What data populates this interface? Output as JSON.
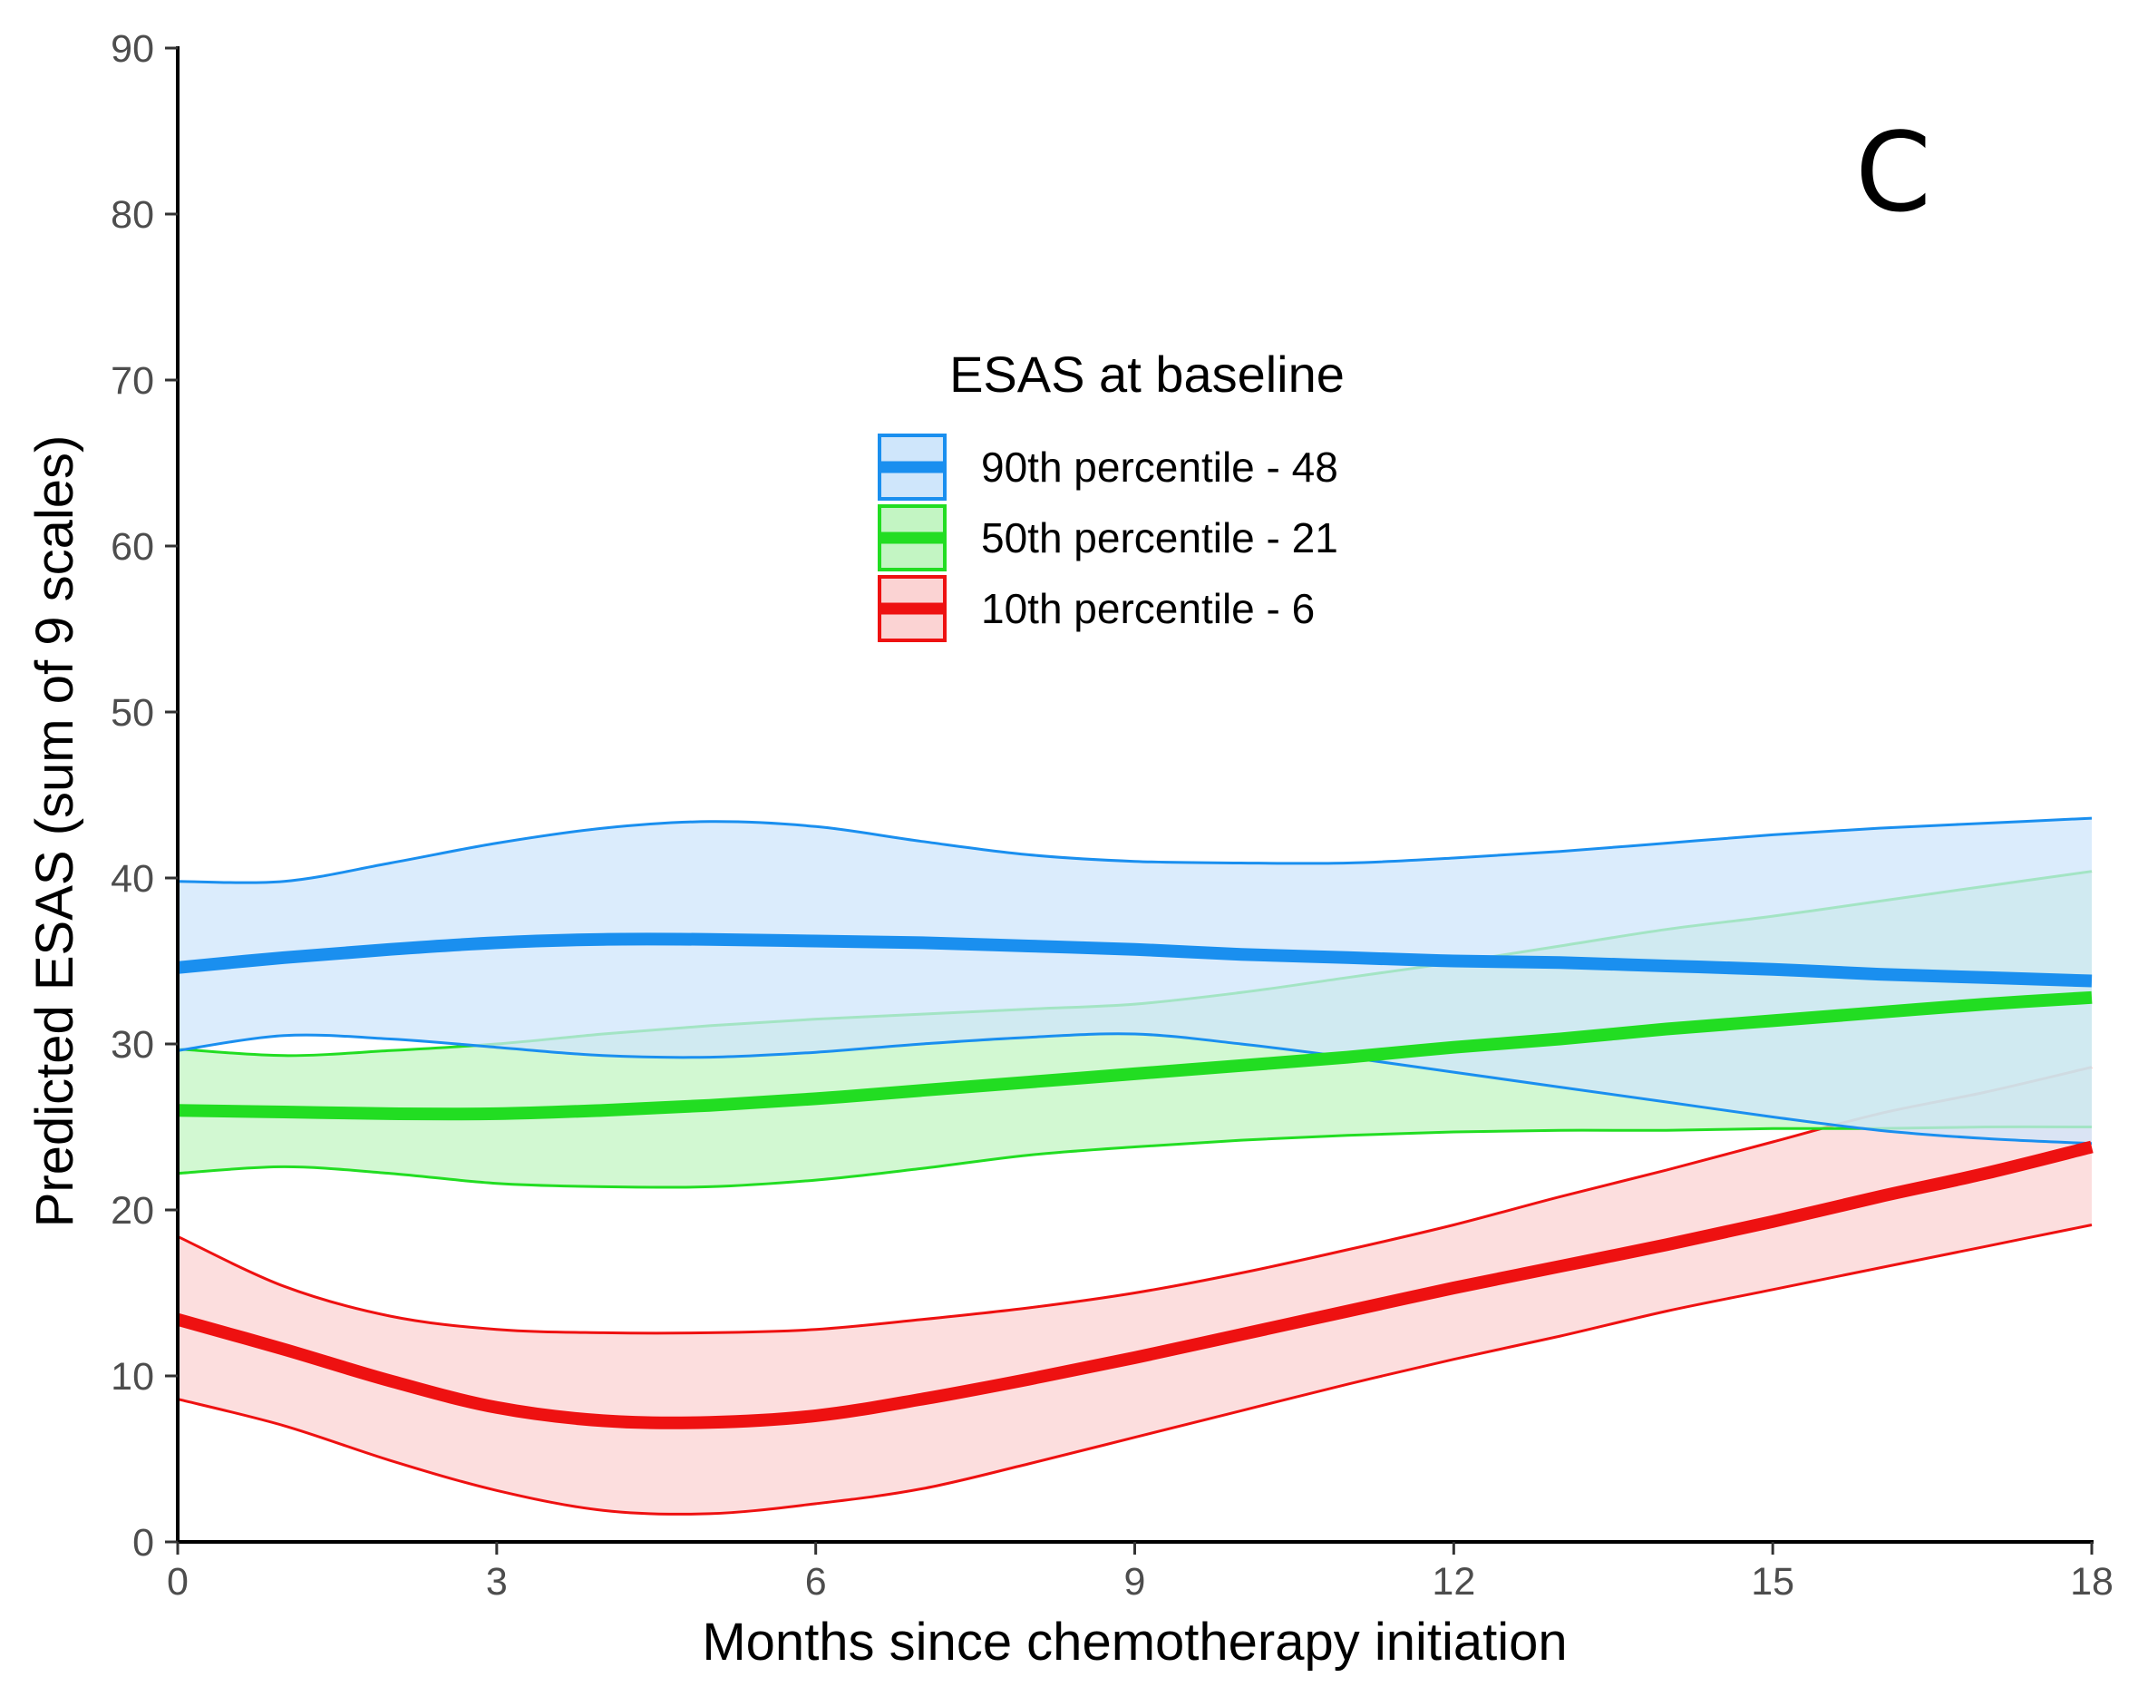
{
  "chart_data": {
    "type": "line",
    "panel_label": "C",
    "xlabel": "Months since chemotherapy initiation",
    "ylabel": "Predicted ESAS (sum of 9 scales)",
    "xlim": [
      0,
      18
    ],
    "ylim": [
      0,
      90
    ],
    "xticks": [
      0,
      3,
      6,
      9,
      12,
      15,
      18
    ],
    "yticks": [
      0,
      10,
      20,
      30,
      40,
      50,
      60,
      70,
      80,
      90
    ],
    "grid": false,
    "legend": {
      "title": "ESAS at baseline",
      "placement": "upper-center"
    },
    "series": [
      {
        "name": "90th percentile - 48",
        "color": "#1a8fef",
        "fill": "#cfe6fb",
        "x": [
          0,
          1,
          2,
          3,
          4,
          5,
          6,
          7,
          8,
          9,
          10,
          11,
          12,
          13,
          14,
          15,
          16,
          17,
          18
        ],
        "y": [
          34.6,
          35.2,
          35.7,
          36.1,
          36.3,
          36.3,
          36.2,
          36.1,
          35.9,
          35.7,
          35.4,
          35.2,
          35.0,
          34.9,
          34.7,
          34.5,
          34.2,
          34.0,
          33.8
        ],
        "lower": [
          29.6,
          30.5,
          30.3,
          29.8,
          29.3,
          29.2,
          29.5,
          30.0,
          30.4,
          30.6,
          30.0,
          29.2,
          28.3,
          27.4,
          26.5,
          25.6,
          24.8,
          24.3,
          24.0
        ],
        "upper": [
          39.8,
          39.8,
          40.9,
          42.1,
          43.0,
          43.4,
          43.1,
          42.2,
          41.4,
          41.0,
          40.9,
          40.9,
          41.2,
          41.6,
          42.1,
          42.6,
          43.0,
          43.3,
          43.6
        ]
      },
      {
        "name": "50th percentile - 21",
        "color": "#22dd22",
        "fill": "#c3f5c3",
        "x": [
          0,
          1,
          2,
          3,
          4,
          5,
          6,
          7,
          8,
          9,
          10,
          11,
          12,
          13,
          14,
          15,
          16,
          17,
          18
        ],
        "y": [
          26.0,
          25.9,
          25.8,
          25.8,
          26.0,
          26.3,
          26.7,
          27.2,
          27.7,
          28.2,
          28.7,
          29.2,
          29.8,
          30.3,
          30.9,
          31.4,
          31.9,
          32.4,
          32.8
        ],
        "lower": [
          22.2,
          22.6,
          22.2,
          21.6,
          21.4,
          21.4,
          21.8,
          22.5,
          23.3,
          23.8,
          24.2,
          24.5,
          24.7,
          24.8,
          24.8,
          24.9,
          24.9,
          25.0,
          25.0
        ],
        "upper": [
          29.7,
          29.3,
          29.6,
          30.0,
          30.6,
          31.1,
          31.5,
          31.8,
          32.1,
          32.4,
          33.1,
          34.0,
          34.9,
          35.9,
          36.9,
          37.7,
          38.6,
          39.5,
          40.4
        ]
      },
      {
        "name": "10th percentile - 6",
        "color": "#ee1111",
        "fill": "#fbd3d3",
        "x": [
          0,
          1,
          2,
          3,
          4,
          5,
          6,
          7,
          8,
          9,
          10,
          11,
          12,
          13,
          14,
          15,
          16,
          17,
          18
        ],
        "y": [
          13.4,
          11.6,
          9.7,
          8.1,
          7.3,
          7.2,
          7.6,
          8.6,
          9.8,
          11.1,
          12.5,
          13.9,
          15.3,
          16.6,
          17.9,
          19.3,
          20.8,
          22.2,
          23.8
        ],
        "lower": [
          8.6,
          7.0,
          4.9,
          3.1,
          1.9,
          1.7,
          2.3,
          3.2,
          4.7,
          6.3,
          7.9,
          9.5,
          11.0,
          12.4,
          13.9,
          15.2,
          16.5,
          17.8,
          19.1
        ],
        "upper": [
          18.4,
          15.4,
          13.6,
          12.8,
          12.6,
          12.6,
          12.8,
          13.4,
          14.1,
          15.0,
          16.2,
          17.6,
          19.1,
          20.8,
          22.4,
          24.1,
          25.8,
          27.1,
          28.6
        ]
      }
    ]
  }
}
